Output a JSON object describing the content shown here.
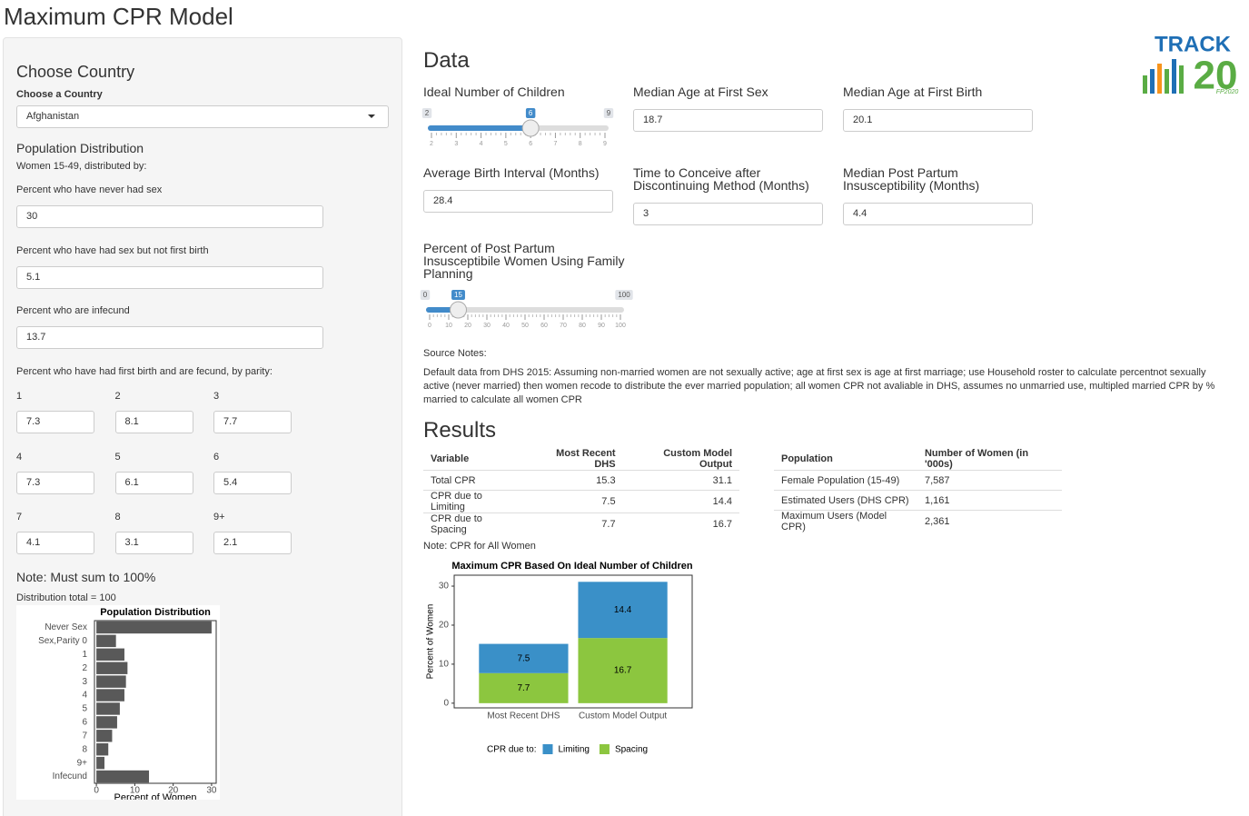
{
  "title": "Maximum CPR Model",
  "sidebar": {
    "heading": "Choose Country",
    "country_label": "Choose a Country",
    "country": "Afghanistan",
    "section": "Population Distribution",
    "subtitle": "Women 15-49, distributed by:",
    "fields": [
      {
        "label": "Percent who have never had sex",
        "value": "30"
      },
      {
        "label": "Percent who have had sex but not first birth",
        "value": "5.1"
      },
      {
        "label": "Percent who are infecund",
        "value": "13.7"
      }
    ],
    "parity_label": "Percent who have had first birth and are fecund, by parity:",
    "parity": [
      {
        "label": "1",
        "value": "7.3"
      },
      {
        "label": "2",
        "value": "8.1"
      },
      {
        "label": "3",
        "value": "7.7"
      },
      {
        "label": "4",
        "value": "7.3"
      },
      {
        "label": "5",
        "value": "6.1"
      },
      {
        "label": "6",
        "value": "5.4"
      },
      {
        "label": "7",
        "value": "4.1"
      },
      {
        "label": "8",
        "value": "3.1"
      },
      {
        "label": "9+",
        "value": "2.1"
      }
    ],
    "note": "Note: Must sum to 100%",
    "total": "Distribution total = 100"
  },
  "main": {
    "data_heading": "Data",
    "sliders": [
      {
        "label": "Ideal Number of Children",
        "min": 2,
        "max": 9,
        "value": 6,
        "ticks": [
          2,
          3,
          4,
          5,
          6,
          7,
          8,
          9
        ]
      },
      {
        "label": "Percent of Post Partum Insusceptibile Women Using Family Planning",
        "min": 0,
        "max": 100,
        "value": 15,
        "ticks": [
          0,
          10,
          20,
          30,
          40,
          50,
          60,
          70,
          80,
          90,
          100
        ]
      }
    ],
    "inputs": [
      {
        "label": "Median Age at First Sex",
        "value": "18.7"
      },
      {
        "label": "Median Age at First Birth",
        "value": "20.1"
      },
      {
        "label": "Average Birth Interval (Months)",
        "value": "28.4"
      },
      {
        "label": "Time to Conceive after Discontinuing Method (Months)",
        "value": "3"
      },
      {
        "label": "Median Post Partum Insusceptibility (Months)",
        "value": "4.4"
      }
    ],
    "source_heading": "Source Notes:",
    "source_text": "Default data from DHS 2015: Assuming non-married women are not sexually active; age at first sex is age at first marriage; use Household roster to calculate percentnot sexually active (never married) then women recode to distribute the ever married population; all women CPR not avaliable in DHS, assumes no unmarried use, multipled married CPR by % married to calculate all women CPR",
    "results_heading": "Results",
    "table1": {
      "header": [
        "Variable",
        "Most Recent DHS",
        "Custom Model Output"
      ],
      "rows": [
        [
          "Total CPR",
          "15.3",
          "31.1"
        ],
        [
          "CPR due to Limiting",
          "7.5",
          "14.4"
        ],
        [
          "CPR due to Spacing",
          "7.7",
          "16.7"
        ]
      ]
    },
    "table2": {
      "header": [
        "Population",
        "Number of Women (in '000s)"
      ],
      "rows": [
        [
          "Female Population (15-49)",
          "7,587"
        ],
        [
          "Estimated Users (DHS CPR)",
          "1,161"
        ],
        [
          "Maximum Users (Model CPR)",
          "2,361"
        ]
      ]
    },
    "note": "Note: CPR for All Women"
  },
  "logo": {
    "text": "TRACK",
    "number": "20",
    "tag": "FP2020"
  },
  "chart_data": [
    {
      "type": "bar",
      "orientation": "horizontal",
      "title": "Population Distribution",
      "x_label": "Percent of Women",
      "categories": [
        "Never Sex",
        "Sex,Parity 0",
        "1",
        "2",
        "3",
        "4",
        "5",
        "6",
        "7",
        "8",
        "9+",
        "Infecund"
      ],
      "values": [
        30,
        5.1,
        7.3,
        8.1,
        7.7,
        7.3,
        6.1,
        5.4,
        4.1,
        3.1,
        2.1,
        13.7
      ],
      "color": "#595959",
      "xlim": [
        -0.5,
        31.2
      ],
      "xticks": [
        0,
        10,
        20,
        30
      ]
    },
    {
      "type": "stacked_bar",
      "title": "Maximum CPR Based On Ideal Number of Children",
      "y_label": "Percent of Women",
      "categories": [
        "Most Recent DHS",
        "Custom Model Output"
      ],
      "legend_title": "CPR due to:",
      "legend": "bottom",
      "series": [
        {
          "name": "Limiting",
          "color": "#3a90c8",
          "values": [
            7.5,
            14.4
          ]
        },
        {
          "name": "Spacing",
          "color": "#8cc63f",
          "values": [
            7.7,
            16.7
          ]
        }
      ],
      "ylim": [
        -1.2,
        32.8
      ],
      "yticks": [
        0,
        10,
        20,
        30
      ]
    }
  ]
}
